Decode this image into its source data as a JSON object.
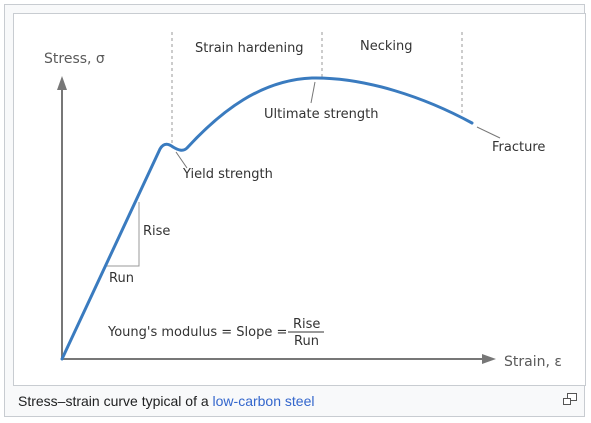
{
  "diagram": {
    "y_axis_label": "Stress, σ",
    "x_axis_label": "Strain, ε",
    "regions": {
      "strain_hardening": "Strain hardening",
      "necking": "Necking"
    },
    "annotations": {
      "yield_strength": "Yield strength",
      "ultimate_strength": "Ultimate strength",
      "fracture": "Fracture",
      "rise": "Rise",
      "run": "Run"
    },
    "formula": {
      "lhs": "Young's modulus = Slope =",
      "numerator": "Rise",
      "denominator": "Run"
    },
    "curve_color": "#3a7bbf",
    "axis_color": "#777777"
  },
  "caption": {
    "text": "Stress–strain curve typical of a ",
    "link": "low-carbon steel"
  },
  "icons": {
    "enlarge": "magnify-clip-icon"
  }
}
